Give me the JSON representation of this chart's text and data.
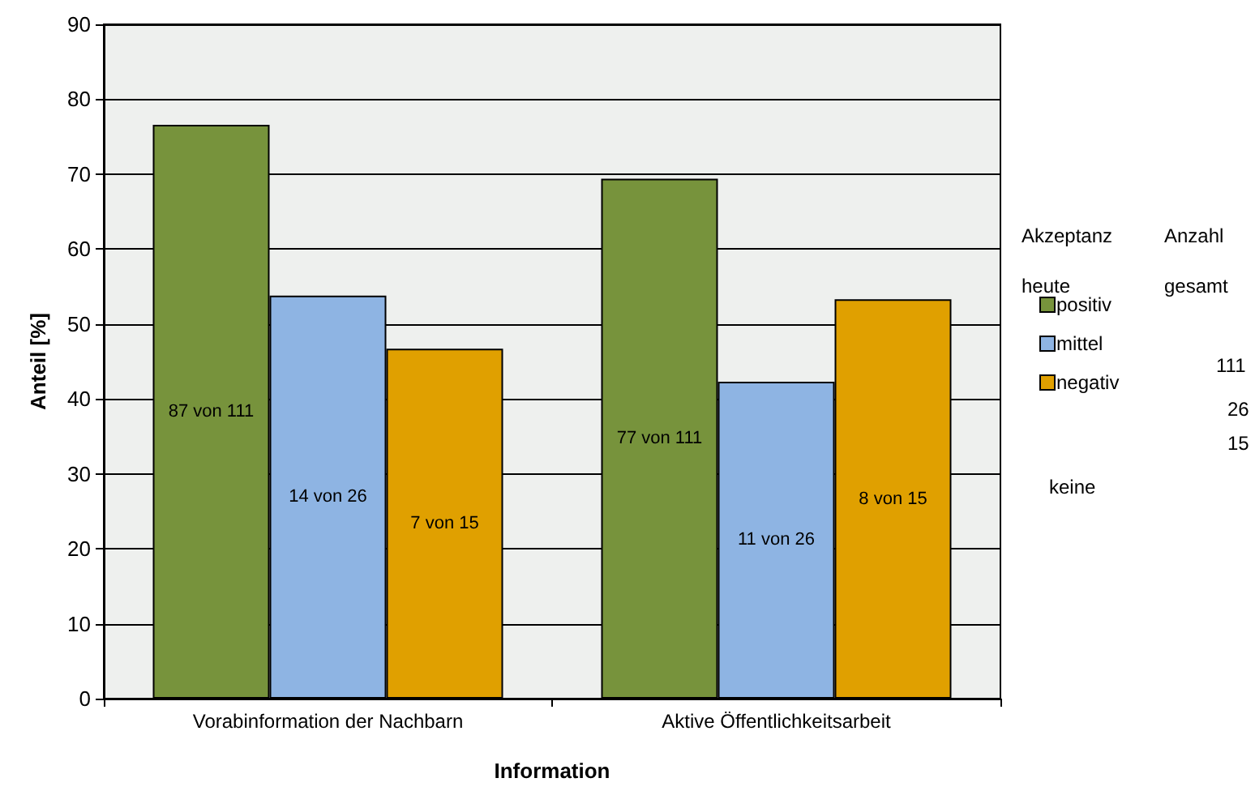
{
  "chart_data": {
    "type": "bar",
    "xlabel": "Information",
    "ylabel": "Anteil [%]",
    "legend_title": "Akzeptanz heute",
    "categories": [
      "Vorabinformation der Nachbarn",
      "Aktive Öffentlichkeitsarbeit"
    ],
    "series": [
      {
        "name": "positiv",
        "color": "#77933c",
        "values": [
          76.6,
          69.4
        ]
      },
      {
        "name": "mittel",
        "color": "#8eb4e3",
        "values": [
          53.8,
          42.3
        ]
      },
      {
        "name": "negativ",
        "color": "#e0a000",
        "values": [
          46.7,
          53.3
        ]
      }
    ],
    "ylim": [
      0,
      90
    ],
    "yticks": [
      0,
      10,
      20,
      30,
      40,
      50,
      60,
      70,
      80,
      90
    ],
    "grid": "y",
    "legend": "right",
    "annotations": [
      "Anzahl gesamt",
      "111",
      "26",
      "15",
      "keine",
      "87 von 111",
      "14 von 26",
      "7 von 15",
      "77 von 111",
      "11 von 26",
      "8 von 15"
    ]
  }
}
